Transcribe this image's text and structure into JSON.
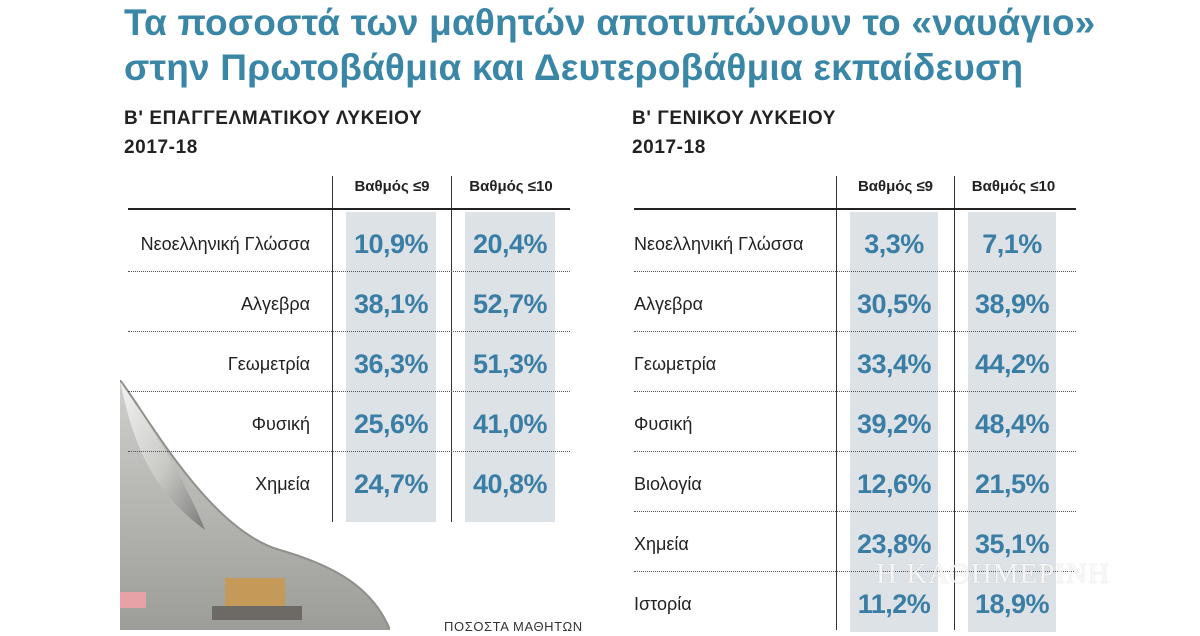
{
  "title": {
    "line1": "Τα ποσοστά των μαθητών αποτυπώνουν το «ναυάγιο»",
    "line2": "στην Πρωτοβάθμια και Δευτεροβάθμια εκπαίδευση"
  },
  "tables": [
    {
      "heading_line1": "Β' ΕΠΑΓΓΕΛΜΑΤΙΚΟΥ ΛΥΚΕΙΟΥ",
      "heading_line2": "2017-18",
      "col1": "Βαθμός ≤9",
      "col2": "Βαθμός ≤10",
      "rows": [
        {
          "subject": "Νεοελληνική Γλώσσα",
          "v9": "10,9%",
          "v10": "20,4%"
        },
        {
          "subject": "Αλγεβρα",
          "v9": "38,1%",
          "v10": "52,7%"
        },
        {
          "subject": "Γεωμετρία",
          "v9": "36,3%",
          "v10": "51,3%"
        },
        {
          "subject": "Φυσική",
          "v9": "25,6%",
          "v10": "41,0%"
        },
        {
          "subject": "Χημεία",
          "v9": "24,7%",
          "v10": "40,8%"
        }
      ]
    },
    {
      "heading_line1": "Β' ΓΕΝΙΚΟΥ ΛΥΚΕΙΟΥ",
      "heading_line2": "2017-18",
      "col1": "Βαθμός ≤9",
      "col2": "Βαθμός ≤10",
      "rows": [
        {
          "subject": "Νεοελληνική Γλώσσα",
          "v9": "3,3%",
          "v10": "7,1%"
        },
        {
          "subject": "Αλγεβρα",
          "v9": "30,5%",
          "v10": "38,9%"
        },
        {
          "subject": "Γεωμετρία",
          "v9": "33,4%",
          "v10": "44,2%"
        },
        {
          "subject": "Φυσική",
          "v9": "39,2%",
          "v10": "48,4%"
        },
        {
          "subject": "Βιολογία",
          "v9": "12,6%",
          "v10": "21,5%"
        },
        {
          "subject": "Χημεία",
          "v9": "23,8%",
          "v10": "35,1%"
        },
        {
          "subject": "Ιστορία",
          "v9": "11,2%",
          "v10": "18,9%"
        }
      ]
    }
  ],
  "footer_note": "ΠΟΣΟΣΤΑ ΜΑΘΗΤΩΝ",
  "watermark": "Η ΚΑΘΗΜΕΡΙΝΗ",
  "colors": {
    "accent": "#3a86a6",
    "value": "#3a7ea6",
    "band": "#dde2e7"
  }
}
